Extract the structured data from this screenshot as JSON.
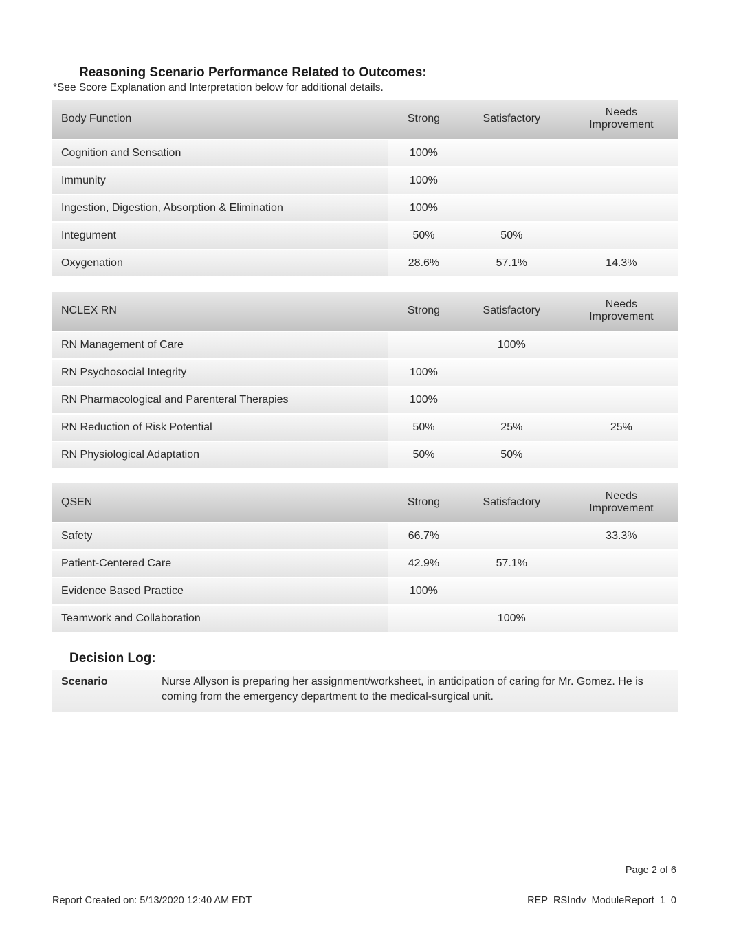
{
  "heading": "Reasoning Scenario Performance Related to Outcomes:",
  "subheading": "*See Score Explanation and Interpretation below for additional details.",
  "col_strong": "Strong",
  "col_satisfactory": "Satisfactory",
  "col_needs_line1": "Needs",
  "col_needs_line2": "Improvement",
  "tables": {
    "body_function": {
      "category": "Body Function",
      "rows": [
        {
          "label": "Cognition and Sensation",
          "strong": "100%",
          "satisfactory": "",
          "needs": ""
        },
        {
          "label": "Immunity",
          "strong": "100%",
          "satisfactory": "",
          "needs": ""
        },
        {
          "label": "Ingestion, Digestion, Absorption & Elimination",
          "strong": "100%",
          "satisfactory": "",
          "needs": ""
        },
        {
          "label": "Integument",
          "strong": "50%",
          "satisfactory": "50%",
          "needs": ""
        },
        {
          "label": "Oxygenation",
          "strong": "28.6%",
          "satisfactory": "57.1%",
          "needs": "14.3%"
        }
      ]
    },
    "nclex_rn": {
      "category": "NCLEX RN",
      "rows": [
        {
          "label": "RN Management of Care",
          "strong": "",
          "satisfactory": "100%",
          "needs": ""
        },
        {
          "label": "RN Psychosocial Integrity",
          "strong": "100%",
          "satisfactory": "",
          "needs": ""
        },
        {
          "label": "RN Pharmacological and Parenteral Therapies",
          "strong": "100%",
          "satisfactory": "",
          "needs": ""
        },
        {
          "label": "RN Reduction of Risk Potential",
          "strong": "50%",
          "satisfactory": "25%",
          "needs": "25%"
        },
        {
          "label": "RN Physiological Adaptation",
          "strong": "50%",
          "satisfactory": "50%",
          "needs": ""
        }
      ]
    },
    "qsen": {
      "category": "QSEN",
      "rows": [
        {
          "label": "Safety",
          "strong": "66.7%",
          "satisfactory": "",
          "needs": "33.3%"
        },
        {
          "label": "Patient-Centered Care",
          "strong": "42.9%",
          "satisfactory": "57.1%",
          "needs": ""
        },
        {
          "label": "Evidence Based Practice",
          "strong": "100%",
          "satisfactory": "",
          "needs": ""
        },
        {
          "label": "Teamwork and Collaboration",
          "strong": "",
          "satisfactory": "100%",
          "needs": ""
        }
      ]
    }
  },
  "decision_title": "Decision Log:",
  "scenario_label": "Scenario",
  "scenario_text": "Nurse Allyson is preparing her assignment/worksheet, in anticipation of caring for Mr. Gomez. He is coming from the emergency department to the medical-surgical unit.",
  "page_number": "Page 2 of 6",
  "footer_left": "Report Created on: 5/13/2020 12:40 AM EDT",
  "footer_right": "REP_RSIndv_ModuleReport_1_0",
  "style": {
    "header_gradient_top": "#e8e8e8",
    "header_gradient_bottom": "#c2c2c2",
    "row_label_gradient_top": "#f7f7f7",
    "row_label_gradient_bottom": "#e4e4e4",
    "row_val_gradient_top": "#fdfdfd",
    "row_val_gradient_bottom": "#eeeeee",
    "text_color": "#2a2a2a",
    "background": "#ffffff",
    "title_fontsize": 19,
    "body_fontsize": 16,
    "footer_fontsize": 14.5
  }
}
